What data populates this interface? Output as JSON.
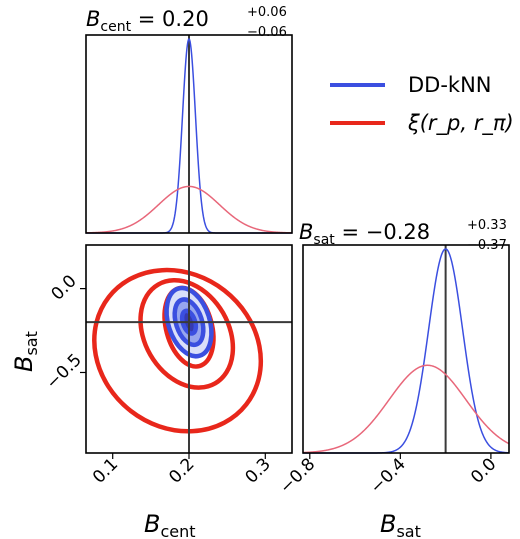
{
  "colors": {
    "ddknn": "#3b4fe0",
    "ddknn_fill": "#8fa0ec",
    "ddknn_dark": "#2a2fa8",
    "xi": "#e8271b",
    "xi_light": "#e8677a",
    "truth": "#3a3a3a"
  },
  "legend": {
    "ddknn_label": "DD-kNN",
    "xi_label": "ξ(r_p, r_π)"
  },
  "titles": {
    "bcent_prefix": "B",
    "bcent_sub": "cent",
    "bcent_value": " = 0.20",
    "bcent_plus": "+0.06",
    "bcent_minus": "−0.06",
    "bsat_prefix": "B",
    "bsat_sub": "sat",
    "bsat_value": " = −0.28",
    "bsat_plus": "+0.33",
    "bsat_minus": "−0.37"
  },
  "axes": {
    "xlabel_prefix": "B",
    "xlabel_cent_sub": "cent",
    "xlabel_sat_sub": "sat",
    "ylabel_prefix": "B",
    "ylabel_sub": "sat"
  },
  "chart_data": [
    {
      "type": "line",
      "panel": "marginal B_cent",
      "xlim": [
        0.065,
        0.335
      ],
      "truth_x": 0.2,
      "series": [
        {
          "name": "DD-kNN",
          "mean": 0.2,
          "sigma": 0.0085,
          "peak": 1.0
        },
        {
          "name": "ξ(r_p, r_π)",
          "mean": 0.2,
          "sigma": 0.04,
          "peak": 0.24
        }
      ]
    },
    {
      "type": "line",
      "panel": "marginal B_sat",
      "xlim": [
        -0.83,
        0.08
      ],
      "xticks": [
        "−0.8",
        "−0.4",
        "0.0"
      ],
      "xtick_values": [
        -0.8,
        -0.4,
        0.0
      ],
      "truth_x": -0.2,
      "series": [
        {
          "name": "DD-kNN",
          "mean": -0.2,
          "sigma": 0.075,
          "peak": 1.0
        },
        {
          "name": "ξ(r_p, r_π)",
          "mean": -0.28,
          "sigma": 0.17,
          "peak": 0.43
        }
      ]
    },
    {
      "type": "scatter",
      "panel": "joint B_cent vs B_sat",
      "xlim": [
        0.065,
        0.335
      ],
      "ylim": [
        -0.98,
        0.26
      ],
      "xticks": [
        "0.1",
        "0.2",
        "0.3"
      ],
      "xtick_values": [
        0.1,
        0.2,
        0.3
      ],
      "yticks": [
        "0.0",
        "−0.5"
      ],
      "ytick_values": [
        0.0,
        -0.5
      ],
      "truth": [
        0.2,
        -0.2
      ],
      "contours": [
        {
          "name": "ξ(r_p, r_π)",
          "level": 3,
          "cx": 0.185,
          "cy": -0.37,
          "rx": 0.1,
          "ry": 0.52,
          "angle_deg": 52
        },
        {
          "name": "ξ(r_p, r_π)",
          "level": 2,
          "cx": 0.197,
          "cy": -0.27,
          "rx": 0.055,
          "ry": 0.34,
          "angle_deg": 30
        },
        {
          "name": "ξ(r_p, r_π)",
          "level": 1,
          "cx": 0.2,
          "cy": -0.23,
          "rx": 0.03,
          "ry": 0.24,
          "angle_deg": 15
        },
        {
          "name": "DD-kNN",
          "level": 3,
          "cx": 0.2,
          "cy": -0.2,
          "rx": 0.027,
          "ry": 0.21,
          "angle_deg": 18
        },
        {
          "name": "DD-kNN",
          "level": 2,
          "cx": 0.2,
          "cy": -0.2,
          "rx": 0.017,
          "ry": 0.14,
          "angle_deg": 18
        },
        {
          "name": "DD-kNN",
          "level": 1,
          "cx": 0.2,
          "cy": -0.2,
          "rx": 0.008,
          "ry": 0.07,
          "angle_deg": 18
        }
      ]
    }
  ]
}
